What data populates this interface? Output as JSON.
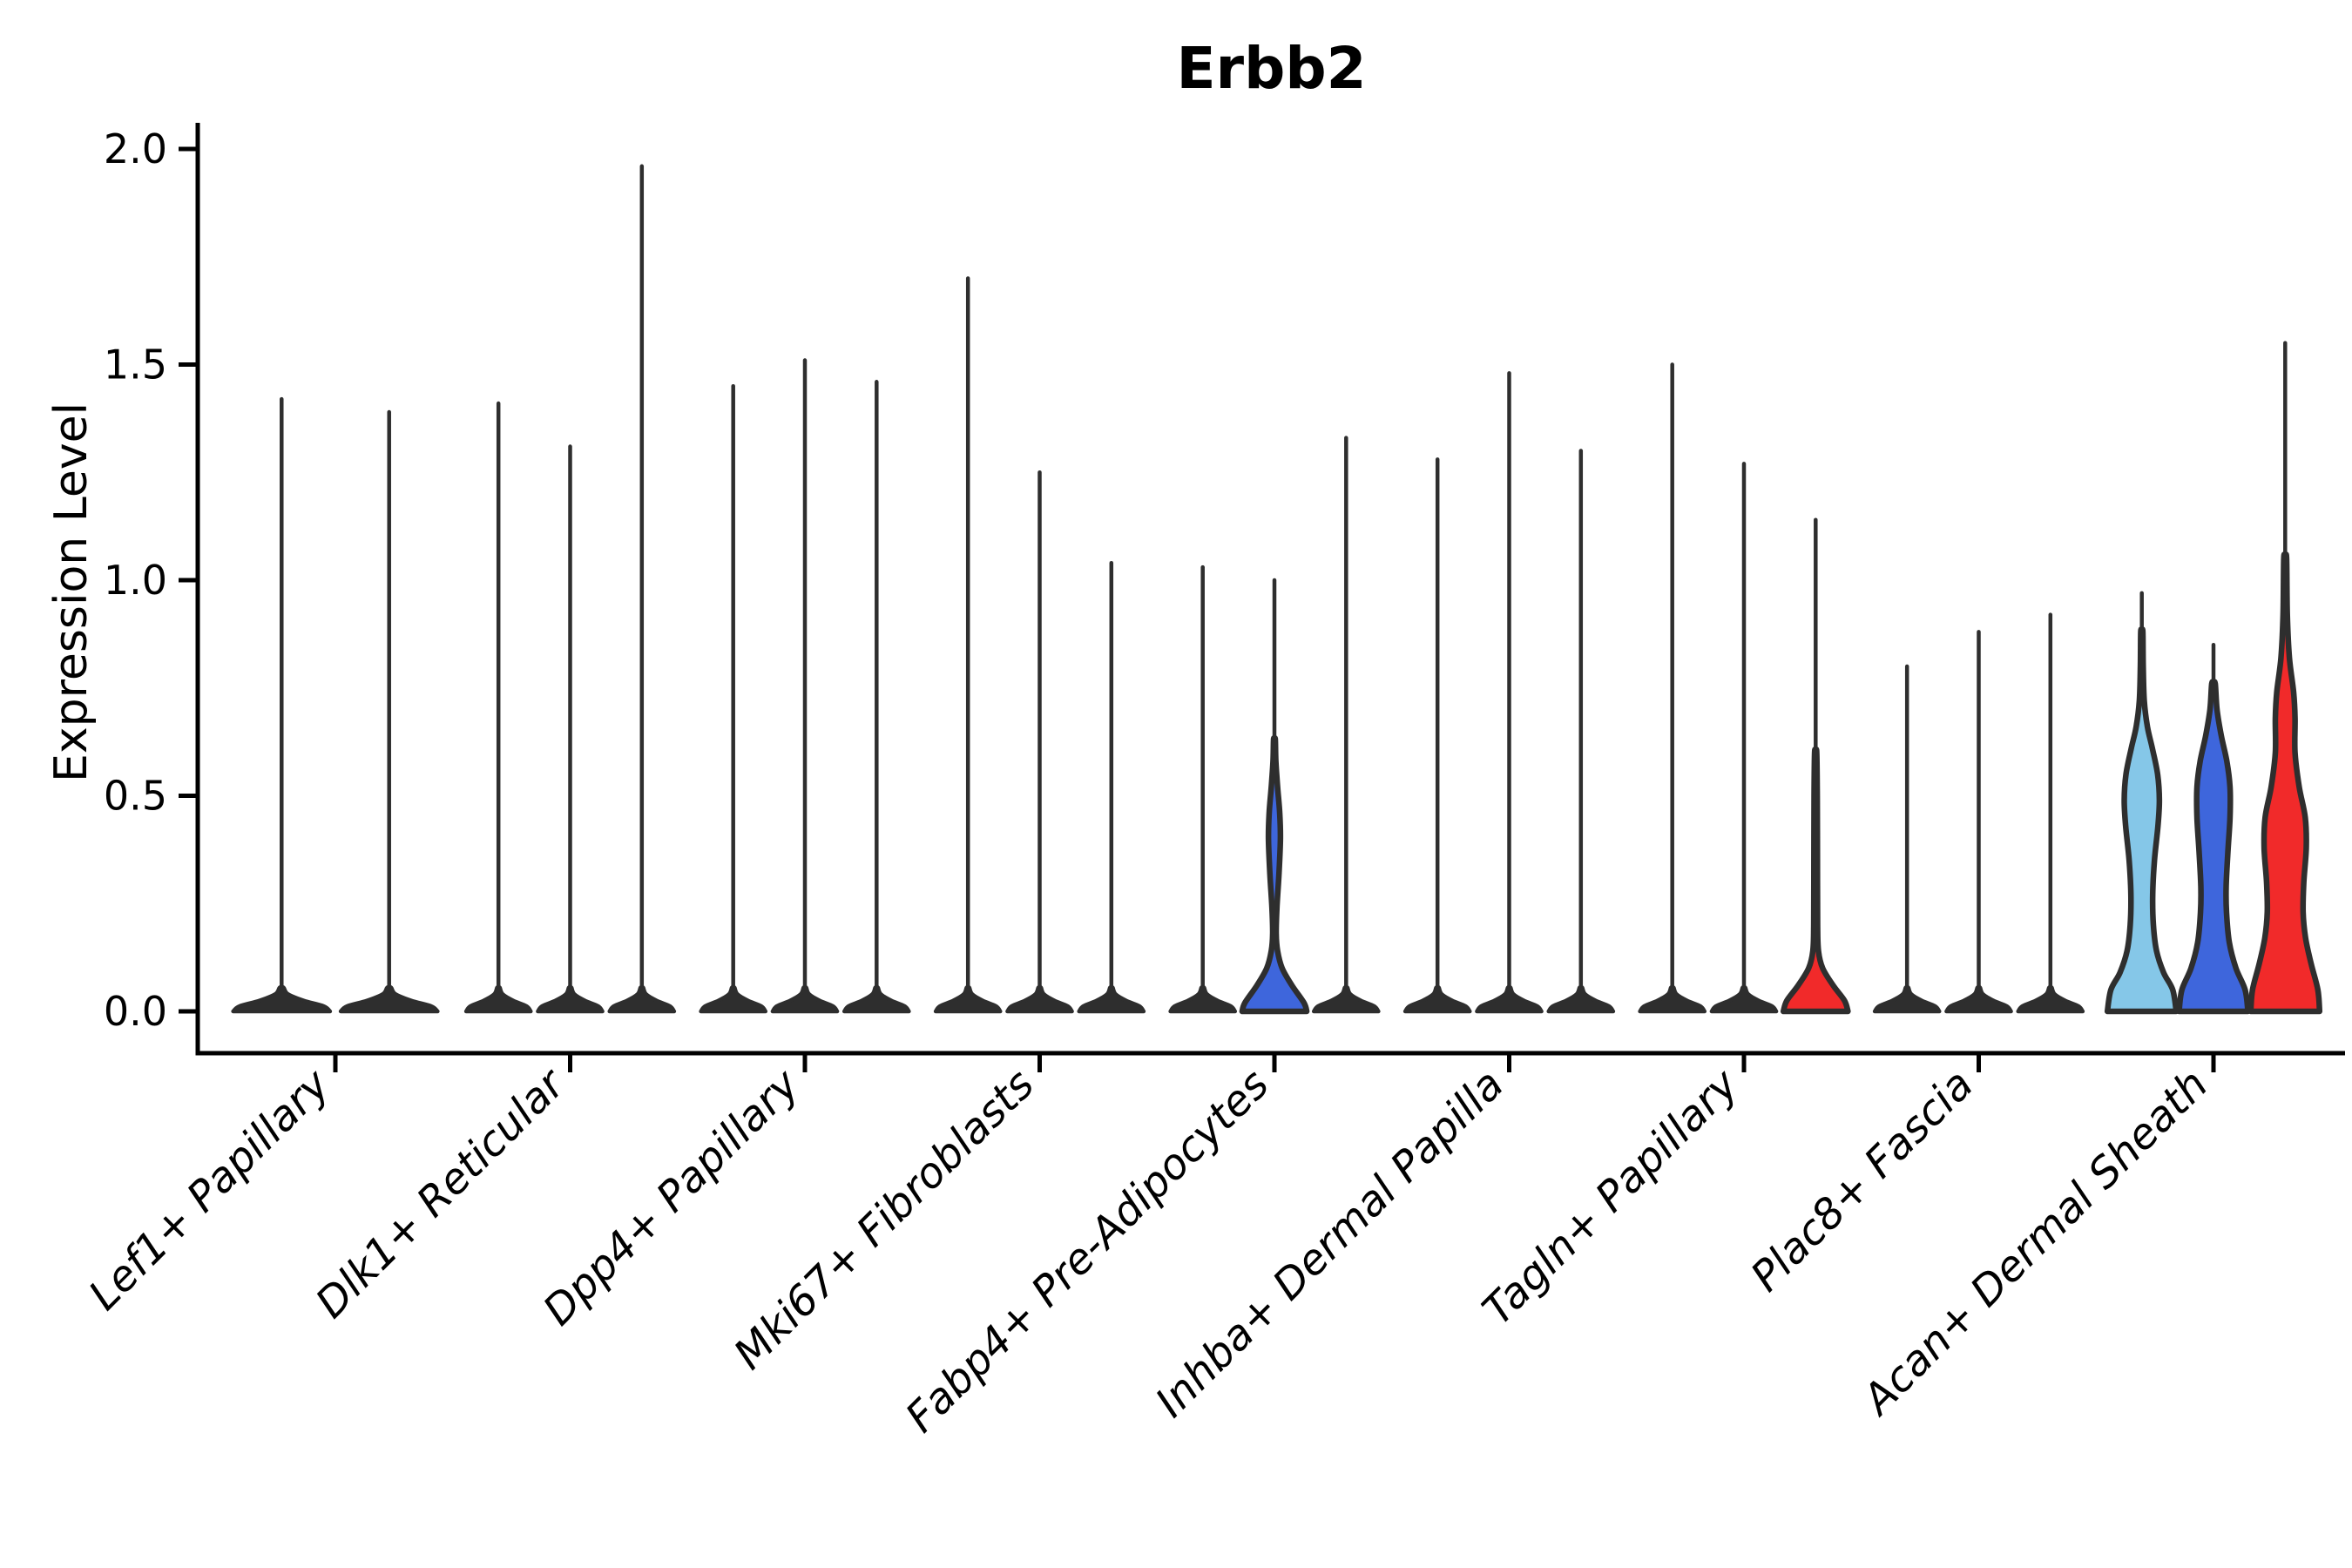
{
  "chart_data": {
    "type": "violin",
    "title": "Erbb2",
    "ylabel": "Expression Level",
    "xlabel": "",
    "ylim": [
      0.0,
      2.06
    ],
    "yticks": [
      0.0,
      0.5,
      1.0,
      1.5,
      2.0
    ],
    "ytick_labels": [
      "0.0",
      "0.5",
      "1.0",
      "1.5",
      "2.0"
    ],
    "grid": false,
    "legend_position": "none",
    "categories": [
      "Lef1+ Papillary",
      "Dlk1+ Reticular",
      "Dpp4+ Papillary",
      "Mki67+ Fibroblasts",
      "Fabp4+ Pre-Adipocytes",
      "Inhba+ Dermal Papilla",
      "Tagln+ Papillary",
      "Plac8+ Fascia",
      "Acan+ Dermal Sheath"
    ],
    "colors": {
      "skyblue": "#85C7E8",
      "blue": "#3E66DC",
      "red": "#F12A2A",
      "outline": "#2e2e2e"
    },
    "default_profile": [
      [
        0,
        0.92
      ],
      [
        0.012,
        0.8
      ],
      [
        0.025,
        0.42
      ],
      [
        0.04,
        0.12
      ],
      [
        0.055,
        0.04
      ]
    ],
    "groups": [
      {
        "category": "Lef1+ Papillary",
        "violins": [
          {
            "max": 1.42,
            "fill": "none"
          },
          {
            "max": 1.39,
            "fill": "none"
          }
        ]
      },
      {
        "category": "Dlk1+ Reticular",
        "violins": [
          {
            "max": 1.41,
            "fill": "none"
          },
          {
            "max": 1.31,
            "fill": "none"
          },
          {
            "max": 1.96,
            "fill": "none"
          }
        ]
      },
      {
        "category": "Dpp4+ Papillary",
        "violins": [
          {
            "max": 1.45,
            "fill": "none"
          },
          {
            "max": 1.51,
            "fill": "none"
          },
          {
            "max": 1.46,
            "fill": "none"
          }
        ]
      },
      {
        "category": "Mki67+ Fibroblasts",
        "violins": [
          {
            "max": 1.7,
            "fill": "none"
          },
          {
            "max": 1.25,
            "fill": "none"
          },
          {
            "max": 1.04,
            "fill": "none"
          }
        ]
      },
      {
        "category": "Fabp4+ Pre-Adipocytes",
        "violins": [
          {
            "max": 1.03,
            "fill": "none"
          },
          {
            "max": 1.0,
            "fill": "blue",
            "profile": [
              [
                0,
                0.92
              ],
              [
                0.02,
                0.84
              ],
              [
                0.06,
                0.5
              ],
              [
                0.1,
                0.22
              ],
              [
                0.14,
                0.09
              ],
              [
                0.18,
                0.05
              ],
              [
                0.24,
                0.07
              ],
              [
                0.32,
                0.13
              ],
              [
                0.4,
                0.17
              ],
              [
                0.46,
                0.15
              ],
              [
                0.52,
                0.09
              ],
              [
                0.58,
                0.04
              ],
              [
                0.63,
                0.025
              ]
            ]
          },
          {
            "max": 1.33,
            "fill": "none"
          }
        ]
      },
      {
        "category": "Inhba+ Dermal Papilla",
        "violins": [
          {
            "max": 1.28,
            "fill": "none"
          },
          {
            "max": 1.48,
            "fill": "none"
          },
          {
            "max": 1.3,
            "fill": "none"
          }
        ]
      },
      {
        "category": "Tagln+ Papillary",
        "violins": [
          {
            "max": 1.5,
            "fill": "none"
          },
          {
            "max": 1.27,
            "fill": "none"
          },
          {
            "max": 1.14,
            "fill": "red",
            "profile": [
              [
                0,
                0.92
              ],
              [
                0.025,
                0.82
              ],
              [
                0.06,
                0.5
              ],
              [
                0.1,
                0.2
              ],
              [
                0.14,
                0.08
              ],
              [
                0.2,
                0.055
              ],
              [
                0.35,
                0.05
              ],
              [
                0.5,
                0.045
              ],
              [
                0.6,
                0.03
              ]
            ]
          }
        ]
      },
      {
        "category": "Plac8+ Fascia",
        "violins": [
          {
            "max": 0.8,
            "fill": "none"
          },
          {
            "max": 0.88,
            "fill": "none"
          },
          {
            "max": 0.92,
            "fill": "none"
          }
        ]
      },
      {
        "category": "Acan+ Dermal Sheath",
        "violins": [
          {
            "max": 0.97,
            "fill": "skyblue",
            "profile": [
              [
                0,
                0.98
              ],
              [
                0.05,
                0.88
              ],
              [
                0.09,
                0.62
              ],
              [
                0.14,
                0.42
              ],
              [
                0.2,
                0.33
              ],
              [
                0.27,
                0.31
              ],
              [
                0.35,
                0.36
              ],
              [
                0.43,
                0.46
              ],
              [
                0.49,
                0.5
              ],
              [
                0.55,
                0.45
              ],
              [
                0.61,
                0.3
              ],
              [
                0.66,
                0.16
              ],
              [
                0.72,
                0.07
              ],
              [
                0.8,
                0.04
              ],
              [
                0.88,
                0.03
              ]
            ]
          },
          {
            "max": 0.85,
            "fill": "blue",
            "profile": [
              [
                0,
                0.98
              ],
              [
                0.05,
                0.9
              ],
              [
                0.1,
                0.64
              ],
              [
                0.16,
                0.45
              ],
              [
                0.23,
                0.37
              ],
              [
                0.29,
                0.36
              ],
              [
                0.37,
                0.41
              ],
              [
                0.45,
                0.47
              ],
              [
                0.52,
                0.47
              ],
              [
                0.58,
                0.38
              ],
              [
                0.64,
                0.22
              ],
              [
                0.7,
                0.1
              ],
              [
                0.76,
                0.05
              ]
            ]
          },
          {
            "max": 1.55,
            "fill": "red",
            "profile": [
              [
                0,
                0.98
              ],
              [
                0.05,
                0.93
              ],
              [
                0.11,
                0.74
              ],
              [
                0.17,
                0.58
              ],
              [
                0.23,
                0.51
              ],
              [
                0.3,
                0.53
              ],
              [
                0.38,
                0.6
              ],
              [
                0.45,
                0.57
              ],
              [
                0.52,
                0.4
              ],
              [
                0.6,
                0.28
              ],
              [
                0.68,
                0.28
              ],
              [
                0.74,
                0.24
              ],
              [
                0.82,
                0.12
              ],
              [
                0.92,
                0.06
              ],
              [
                1.05,
                0.04
              ]
            ]
          }
        ]
      }
    ]
  }
}
